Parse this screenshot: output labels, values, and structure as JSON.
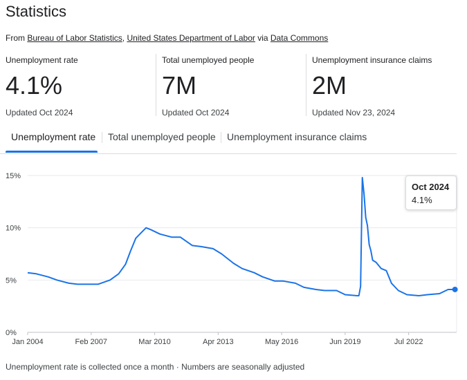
{
  "page": {
    "title": "Statistics",
    "source": {
      "prefix": "From ",
      "link1": "Bureau of Labor Statistics",
      "sep": ", ",
      "link2": "United States Department of Labor",
      "via": " via ",
      "link3": "Data Commons"
    }
  },
  "stats": [
    {
      "label": "Unemployment rate",
      "value": "4.1%",
      "updated": "Updated Oct 2024"
    },
    {
      "label": "Total unemployed people",
      "value": "7M",
      "updated": "Updated Oct 2024"
    },
    {
      "label": "Unemployment insurance claims",
      "value": "2M",
      "updated": "Updated Nov 23, 2024"
    }
  ],
  "tabs": [
    {
      "label": "Unemployment rate",
      "active": true
    },
    {
      "label": "Total unemployed people",
      "active": false
    },
    {
      "label": "Unemployment insurance claims",
      "active": false
    }
  ],
  "tooltip": {
    "date": "Oct 2024",
    "value": "4.1%"
  },
  "footnote": "Unemployment rate is collected once a month · Numbers are seasonally adjusted",
  "chart_data": {
    "type": "line",
    "title": "",
    "xlabel": "",
    "ylabel": "",
    "x_tick_labels": [
      "Jan 2004",
      "Feb 2007",
      "Mar 2010",
      "Apr 2013",
      "May 2016",
      "Jun 2019",
      "Jul 2022"
    ],
    "y_tick_labels": [
      "0%",
      "5%",
      "10%",
      "15%"
    ],
    "ylim": [
      0,
      15
    ],
    "grid": true,
    "line_color": "#1a73e8",
    "series": [
      {
        "name": "",
        "x": [
          "2004-01",
          "2004-06",
          "2005-01",
          "2005-06",
          "2006-01",
          "2006-06",
          "2007-01",
          "2007-06",
          "2008-01",
          "2008-06",
          "2008-10",
          "2009-01",
          "2009-04",
          "2009-07",
          "2009-10",
          "2010-01",
          "2010-06",
          "2011-01",
          "2011-06",
          "2012-01",
          "2012-06",
          "2013-01",
          "2013-06",
          "2014-01",
          "2014-06",
          "2015-01",
          "2015-06",
          "2016-01",
          "2016-06",
          "2017-01",
          "2017-06",
          "2018-01",
          "2018-06",
          "2019-01",
          "2019-06",
          "2020-01",
          "2020-02",
          "2020-03",
          "2020-04",
          "2020-05",
          "2020-06",
          "2020-07",
          "2020-08",
          "2020-09",
          "2020-10",
          "2020-12",
          "2021-03",
          "2021-06",
          "2021-09",
          "2022-01",
          "2022-06",
          "2023-01",
          "2023-06",
          "2024-01",
          "2024-06",
          "2024-10"
        ],
        "y": [
          5.7,
          5.6,
          5.3,
          5.0,
          4.7,
          4.6,
          4.6,
          4.6,
          5.0,
          5.6,
          6.5,
          7.8,
          9.0,
          9.5,
          10.0,
          9.8,
          9.4,
          9.1,
          9.1,
          8.3,
          8.2,
          8.0,
          7.5,
          6.6,
          6.1,
          5.7,
          5.3,
          4.9,
          4.9,
          4.7,
          4.3,
          4.1,
          4.0,
          4.0,
          3.6,
          3.5,
          3.5,
          4.4,
          14.8,
          13.2,
          11.0,
          10.2,
          8.4,
          7.8,
          6.9,
          6.7,
          6.1,
          5.9,
          4.7,
          4.0,
          3.6,
          3.5,
          3.6,
          3.7,
          4.1,
          4.1
        ]
      }
    ]
  }
}
